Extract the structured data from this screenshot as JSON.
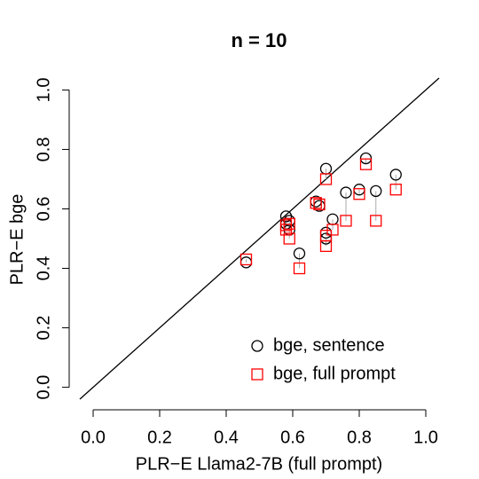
{
  "chart_data": {
    "type": "scatter",
    "title": "n = 10",
    "x_label": "PLR−E Llama2-7B (full prompt)",
    "y_label": "PLR−E bge",
    "x": [
      0.46,
      0.58,
      0.58,
      0.59,
      0.59,
      0.62,
      0.67,
      0.68,
      0.7,
      0.7,
      0.7,
      0.72,
      0.76,
      0.8,
      0.82,
      0.85,
      0.91
    ],
    "series": [
      {
        "name": "bge, sentence",
        "color": "#000000",
        "marker": "circle",
        "values": [
          0.42,
          0.575,
          0.55,
          0.53,
          0.56,
          0.45,
          0.625,
          0.61,
          0.735,
          0.5,
          0.52,
          0.565,
          0.655,
          0.665,
          0.77,
          0.66,
          0.715
        ]
      },
      {
        "name": "bge, full prompt",
        "color": "#ff0000",
        "marker": "square",
        "values": [
          0.43,
          0.545,
          0.53,
          0.5,
          0.55,
          0.4,
          0.62,
          0.615,
          0.7,
          0.475,
          0.51,
          0.53,
          0.56,
          0.65,
          0.75,
          0.56,
          0.665
        ]
      }
    ],
    "xlim": [
      -0.04,
      1.04
    ],
    "ylim": [
      -0.04,
      1.04
    ],
    "xticks": [
      {
        "value": 0,
        "label": "0.0"
      },
      {
        "value": 0.2,
        "label": "0.2"
      },
      {
        "value": 0.4,
        "label": "0.4"
      },
      {
        "value": 0.6,
        "label": "0.6"
      },
      {
        "value": 0.8,
        "label": "0.8"
      },
      {
        "value": 1,
        "label": "1.0"
      }
    ],
    "yticks": [
      {
        "value": 0,
        "label": "0.0"
      },
      {
        "value": 0.2,
        "label": "0.2"
      },
      {
        "value": 0.4,
        "label": "0.4"
      },
      {
        "value": 0.6,
        "label": "0.6"
      },
      {
        "value": 0.8,
        "label": "0.8"
      },
      {
        "value": 1,
        "label": "1.0"
      }
    ],
    "legend": "bottom-right"
  }
}
